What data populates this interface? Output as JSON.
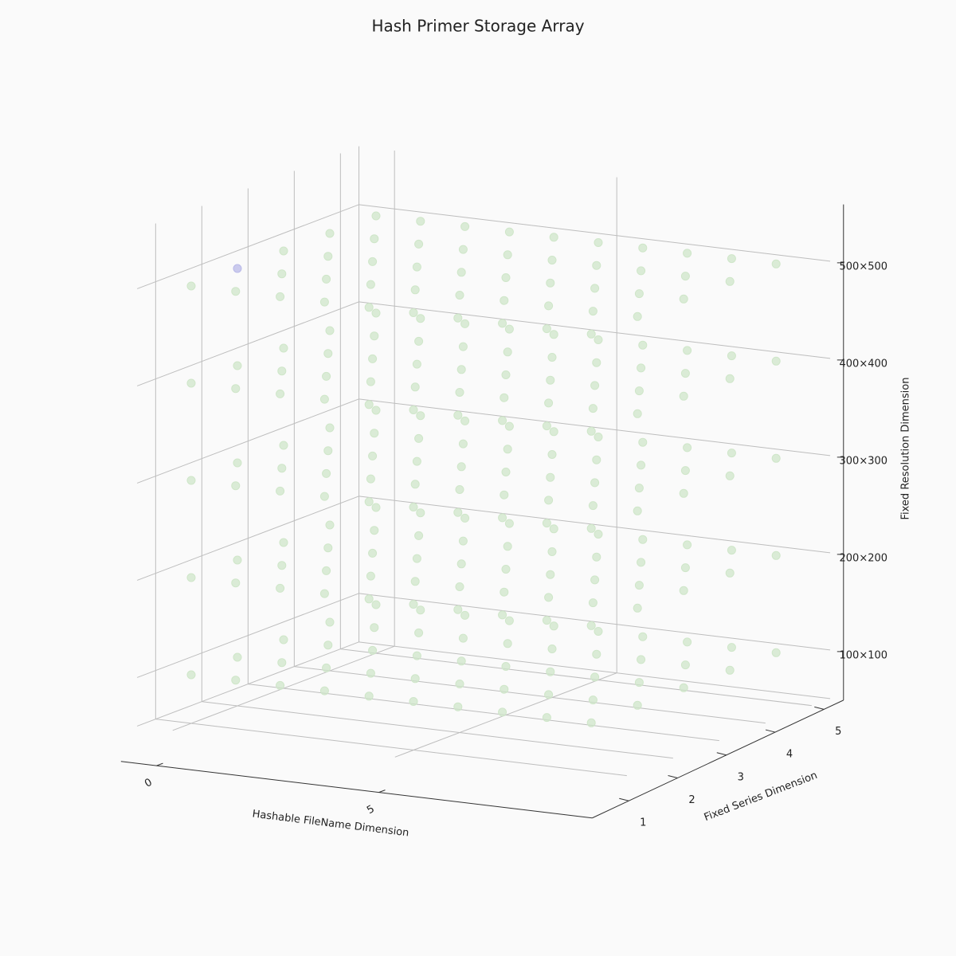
{
  "chart_data": {
    "type": "scatter3d",
    "title": "Hash Primer Storage Array",
    "xlabel": "Hashable FileName Dimension",
    "ylabel": "Fixed Series Dimension",
    "zlabel": "Fixed Resolution Dimension",
    "xlim": [
      -0.8,
      9.8
    ],
    "ylim": [
      0.6,
      5.4
    ],
    "zlim": [
      50,
      560
    ],
    "xticks": [
      0,
      5
    ],
    "yticks": [
      1,
      2,
      3,
      4,
      5
    ],
    "zticks": [
      {
        "value": 100,
        "label": "100×100"
      },
      {
        "value": 200,
        "label": "200×200"
      },
      {
        "value": 300,
        "label": "300×300"
      },
      {
        "value": 400,
        "label": "400×400"
      },
      {
        "value": 500,
        "label": "500×500"
      }
    ],
    "grid": true,
    "series": [
      {
        "color": "#cfe6c9",
        "x": [
          0,
          1,
          2,
          3,
          4,
          5,
          6,
          7,
          8,
          9,
          0,
          1,
          2,
          3,
          4,
          5,
          6,
          7,
          8,
          9,
          0,
          1,
          2,
          3,
          4,
          5,
          6,
          7,
          8,
          9,
          0,
          1,
          2,
          3,
          4,
          5,
          6,
          7,
          8,
          9,
          0,
          1,
          2,
          3,
          4,
          5,
          6,
          7,
          8,
          9,
          0,
          1,
          2,
          3,
          4,
          5,
          6,
          7,
          8,
          9,
          0,
          1,
          2,
          3,
          4,
          5,
          6,
          7,
          8,
          9,
          0,
          1,
          2,
          3,
          4,
          5,
          6,
          7,
          8,
          9,
          0,
          1,
          2,
          3,
          4,
          5,
          6,
          7,
          8,
          9,
          0,
          1,
          2,
          3,
          4,
          5,
          6,
          7,
          8,
          9,
          0,
          1,
          2,
          3,
          4,
          5,
          6,
          7,
          8,
          9,
          0,
          1,
          2,
          3,
          4,
          5,
          6,
          7,
          8,
          9,
          0,
          1,
          2,
          3,
          4,
          5,
          6,
          7,
          8,
          9,
          0,
          1,
          2,
          3,
          4,
          5,
          6,
          7,
          8,
          9,
          0,
          1,
          2,
          3,
          4,
          5,
          6,
          7,
          8,
          9,
          0,
          1,
          2,
          3,
          4,
          5,
          6,
          7,
          8,
          9,
          0,
          1,
          2,
          3,
          4,
          5,
          6,
          7,
          8,
          9,
          0,
          1,
          2,
          3,
          4,
          5,
          6,
          7,
          8,
          9,
          0,
          1,
          2,
          3,
          4,
          5,
          6,
          7,
          8,
          9,
          0,
          1,
          2,
          3,
          4,
          5,
          6,
          7,
          8,
          9,
          0,
          1,
          2,
          3,
          4,
          5,
          6,
          7,
          8,
          9,
          1,
          2,
          3,
          4,
          5,
          6,
          7,
          8,
          9,
          0,
          1,
          2,
          3,
          4,
          5,
          6,
          7,
          8,
          9,
          0,
          1,
          2,
          3,
          4,
          5,
          6,
          7,
          8,
          9,
          0,
          1,
          2,
          3,
          4,
          5,
          6,
          7,
          8,
          9
        ],
        "y": [
          1,
          1,
          1,
          1,
          1,
          1,
          1,
          1,
          1,
          1,
          2,
          2,
          2,
          2,
          2,
          2,
          2,
          2,
          2,
          2,
          3,
          3,
          3,
          3,
          3,
          3,
          3,
          3,
          3,
          3,
          4,
          4,
          4,
          4,
          4,
          4,
          4,
          4,
          4,
          4,
          5,
          5,
          5,
          5,
          5,
          5,
          5,
          5,
          5,
          5,
          1,
          1,
          1,
          1,
          1,
          1,
          1,
          1,
          1,
          1,
          2,
          2,
          2,
          2,
          2,
          2,
          2,
          2,
          2,
          2,
          3,
          3,
          3,
          3,
          3,
          3,
          3,
          3,
          3,
          3,
          4,
          4,
          4,
          4,
          4,
          4,
          4,
          4,
          4,
          4,
          5,
          5,
          5,
          5,
          5,
          5,
          5,
          5,
          5,
          5,
          1,
          1,
          1,
          1,
          1,
          1,
          1,
          1,
          1,
          1,
          2,
          2,
          2,
          2,
          2,
          2,
          2,
          2,
          2,
          2,
          3,
          3,
          3,
          3,
          3,
          3,
          3,
          3,
          3,
          3,
          4,
          4,
          4,
          4,
          4,
          4,
          4,
          4,
          4,
          4,
          5,
          5,
          5,
          5,
          5,
          5,
          5,
          5,
          5,
          5,
          1,
          1,
          1,
          1,
          1,
          1,
          1,
          1,
          1,
          1,
          2,
          2,
          2,
          2,
          2,
          2,
          2,
          2,
          2,
          2,
          3,
          3,
          3,
          3,
          3,
          3,
          3,
          3,
          3,
          3,
          4,
          4,
          4,
          4,
          4,
          4,
          4,
          4,
          4,
          4,
          5,
          5,
          5,
          5,
          5,
          5,
          5,
          5,
          5,
          5,
          1,
          1,
          1,
          1,
          1,
          1,
          1,
          1,
          1,
          1,
          2,
          2,
          2,
          2,
          2,
          2,
          2,
          2,
          2,
          3,
          3,
          3,
          3,
          3,
          3,
          3,
          3,
          3,
          3,
          4,
          4,
          4,
          4,
          4,
          4,
          4,
          4,
          4,
          4,
          5,
          5,
          5,
          5,
          5,
          5,
          5,
          5,
          5,
          5
        ],
        "z": [
          100,
          100,
          100,
          100,
          100,
          100,
          100,
          100,
          100,
          100,
          100,
          100,
          100,
          100,
          100,
          100,
          100,
          100,
          100,
          100,
          100,
          100,
          100,
          100,
          100,
          100,
          100,
          100,
          100,
          100,
          100,
          100,
          100,
          100,
          100,
          100,
          100,
          100,
          100,
          100,
          100,
          100,
          100,
          100,
          100,
          100,
          100,
          100,
          100,
          100,
          200,
          200,
          200,
          200,
          200,
          200,
          200,
          200,
          200,
          200,
          200,
          200,
          200,
          200,
          200,
          200,
          200,
          200,
          200,
          200,
          200,
          200,
          200,
          200,
          200,
          200,
          200,
          200,
          200,
          200,
          200,
          200,
          200,
          200,
          200,
          200,
          200,
          200,
          200,
          200,
          200,
          200,
          200,
          200,
          200,
          200,
          200,
          200,
          200,
          200,
          300,
          300,
          300,
          300,
          300,
          300,
          300,
          300,
          300,
          300,
          300,
          300,
          300,
          300,
          300,
          300,
          300,
          300,
          300,
          300,
          300,
          300,
          300,
          300,
          300,
          300,
          300,
          300,
          300,
          300,
          300,
          300,
          300,
          300,
          300,
          300,
          300,
          300,
          300,
          300,
          300,
          300,
          300,
          300,
          300,
          300,
          300,
          300,
          300,
          300,
          400,
          400,
          400,
          400,
          400,
          400,
          400,
          400,
          400,
          400,
          400,
          400,
          400,
          400,
          400,
          400,
          400,
          400,
          400,
          400,
          400,
          400,
          400,
          400,
          400,
          400,
          400,
          400,
          400,
          400,
          400,
          400,
          400,
          400,
          400,
          400,
          400,
          400,
          400,
          400,
          400,
          400,
          400,
          400,
          400,
          400,
          400,
          400,
          400,
          400,
          500,
          500,
          500,
          500,
          500,
          500,
          500,
          500,
          500,
          500,
          500,
          500,
          500,
          500,
          500,
          500,
          500,
          500,
          500,
          500,
          500,
          500,
          500,
          500,
          500,
          500,
          500,
          500,
          500,
          500,
          500,
          500,
          500,
          500,
          500,
          500,
          500,
          500,
          500,
          500,
          500,
          500,
          500,
          500,
          500,
          500,
          500,
          500,
          500
        ]
      },
      {
        "color": "#b9b9e8",
        "x": [
          0
        ],
        "y": [
          2
        ],
        "z": [
          500
        ]
      }
    ]
  }
}
